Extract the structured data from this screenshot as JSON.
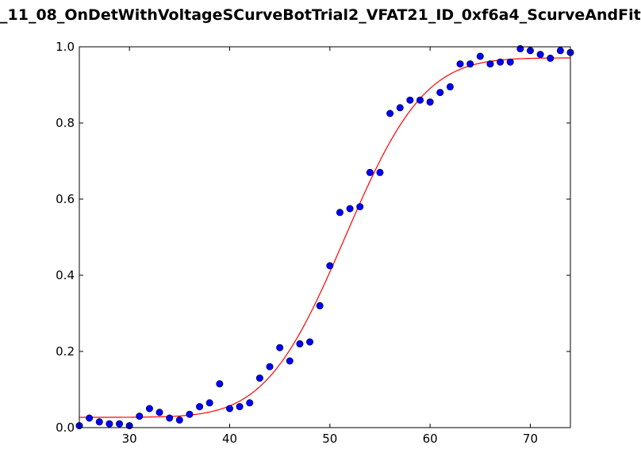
{
  "chart_data": {
    "type": "scatter",
    "title": "_11_08_OnDetWithVoltageSCurveBotTrial2_VFAT21_ID_0xf6a4_ScurveAndFit",
    "xlabel": "",
    "ylabel": "",
    "xlim": [
      25,
      74
    ],
    "ylim": [
      0,
      1.0
    ],
    "x_ticks": [
      30,
      40,
      50,
      60,
      70
    ],
    "y_ticks": [
      0.0,
      0.2,
      0.4,
      0.6,
      0.8,
      1.0
    ],
    "grid": false,
    "legend": "none",
    "colors": {
      "points": "#0000ff",
      "fit": "#ff0000"
    },
    "series": [
      {
        "kind": "points",
        "x": [
          25,
          26,
          27,
          28,
          29,
          30,
          31,
          32,
          33,
          34,
          35,
          36,
          37,
          38,
          39,
          40,
          41,
          42,
          43,
          44,
          45,
          46,
          47,
          48,
          49,
          50,
          51,
          52,
          53,
          54,
          55,
          56,
          57,
          58,
          59,
          60,
          61,
          62,
          63,
          64,
          65,
          66,
          67,
          68,
          69,
          70,
          71,
          72,
          73,
          74
        ],
        "y": [
          0.005,
          0.025,
          0.015,
          0.01,
          0.01,
          0.005,
          0.03,
          0.05,
          0.04,
          0.025,
          0.02,
          0.035,
          0.055,
          0.065,
          0.115,
          0.05,
          0.055,
          0.065,
          0.13,
          0.16,
          0.21,
          0.175,
          0.22,
          0.225,
          0.32,
          0.425,
          0.565,
          0.575,
          0.58,
          0.67,
          0.67,
          0.825,
          0.84,
          0.86,
          0.86,
          0.855,
          0.88,
          0.895,
          0.955,
          0.955,
          0.975,
          0.955,
          0.96,
          0.96,
          0.995,
          0.99,
          0.98,
          0.97,
          0.99,
          0.985
        ]
      },
      {
        "kind": "fit-curve",
        "model": "erf",
        "offset": 0.027,
        "amplitude": 0.944,
        "mean": 51.5,
        "sigma": 6.2
      }
    ]
  }
}
